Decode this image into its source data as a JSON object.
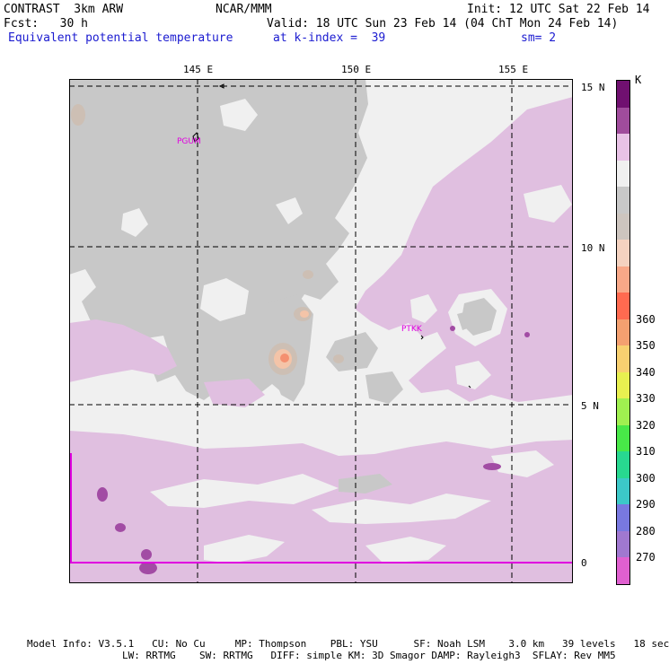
{
  "header": {
    "model": "CONTRAST  3km ARW",
    "org": "NCAR/MMM",
    "init": "Init: 12 UTC Sat 22 Feb 14",
    "fcst": "Fcst:   30 h",
    "valid": "Valid: 18 UTC Sun 23 Feb 14 (04 ChT Mon 24 Feb 14)",
    "field": "Equivalent potential temperature",
    "level": "at k-index =  39",
    "smooth": "sm= 2"
  },
  "axes": {
    "lon_labels": [
      "145 E",
      "150 E",
      "155 E"
    ],
    "lat_labels": [
      "15 N",
      "10 N",
      "5 N",
      "0"
    ]
  },
  "stations": [
    {
      "id": "PGUM"
    },
    {
      "id": "PTKK"
    }
  ],
  "legend": {
    "unit": "K",
    "colors": [
      "#e060d0",
      "#a078d0",
      "#7878e0",
      "#3cc8c8",
      "#28d890",
      "#48e848",
      "#a0f050",
      "#e8f050",
      "#f8d070",
      "#f4a070",
      "#ff6a50",
      "#f8a888",
      "#f4d2c0",
      "#cdc5bf",
      "#c8c8c8",
      "#f0f0f0",
      "#e8c2e6",
      "#a04c9c",
      "#701070"
    ],
    "labels": [
      "270",
      "280",
      "290",
      "300",
      "310",
      "320",
      "330",
      "340",
      "350",
      "360"
    ]
  },
  "colors": {
    "gray": "#c8c8c8",
    "white": "#f0f0f0",
    "lilac": "#e0bfe0",
    "purple": "#a24ca4",
    "tan": "#cdbfb4",
    "peach": "#f4c4a8",
    "orange": "#f49070",
    "title_blue": "#1b1bd0",
    "station": "#e000e0"
  },
  "footer": {
    "line1": "Model Info: V3.5.1   CU: No Cu     MP: Thompson    PBL: YSU      SF: Noah LSM    3.0 km   39 levels   18 sec",
    "line2": "                LW: RRTMG    SW: RRTMG   DIFF: simple KM: 3D Smagor DAMP: Rayleigh3  SFLAY: Rev MM5"
  }
}
